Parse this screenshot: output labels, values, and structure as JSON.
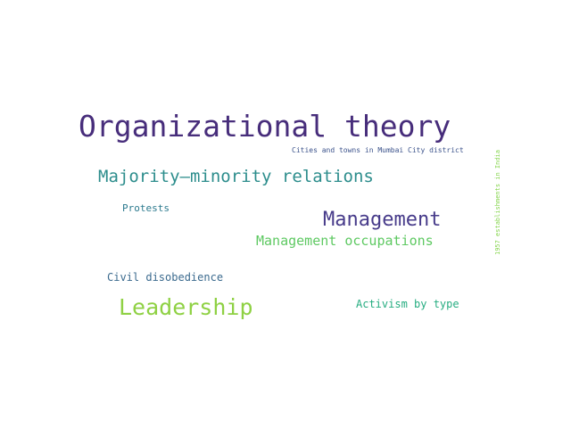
{
  "words": [
    {
      "text": "Organizational theory",
      "color": "#472d7b"
    },
    {
      "text": "Cities and towns in Mumbai City district",
      "color": "#3b528b"
    },
    {
      "text": "Majority–minority relations",
      "color": "#2c8d8c"
    },
    {
      "text": "Protests",
      "color": "#2c7a8e"
    },
    {
      "text": "Management",
      "color": "#473b8a"
    },
    {
      "text": "Management occupations",
      "color": "#5ec962"
    },
    {
      "text": "Civil disobedience",
      "color": "#3b6a8e"
    },
    {
      "text": "Leadership",
      "color": "#8fd144"
    },
    {
      "text": "Activism by type",
      "color": "#26ad81"
    },
    {
      "text": "1957 establishments in India",
      "color": "#84d44b"
    }
  ],
  "background": "#ffffff"
}
